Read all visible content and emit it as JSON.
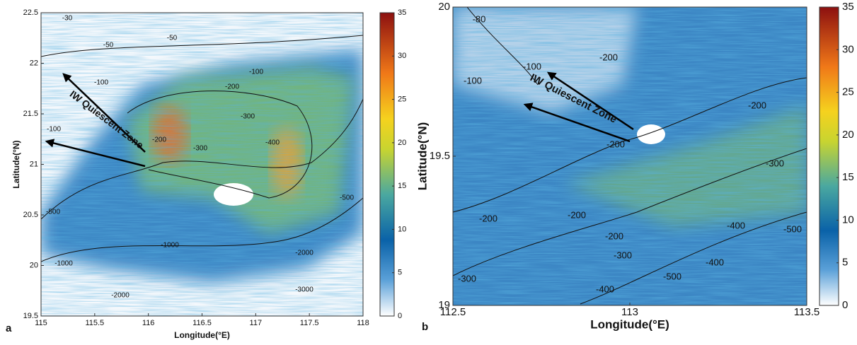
{
  "panels": [
    {
      "letter": "a",
      "xlabel": "Longitude(°E)",
      "ylabel": "Latitude(°N)",
      "xlim": [
        115,
        118
      ],
      "xticks": [
        115,
        115.5,
        116,
        116.5,
        117,
        117.5,
        118
      ],
      "ylim": [
        19.5,
        22.5
      ],
      "yticks": [
        19.5,
        20,
        20.5,
        21,
        21.5,
        22,
        22.5
      ],
      "colorbar": {
        "lim": [
          0,
          35
        ],
        "ticks": [
          0,
          5,
          10,
          15,
          20,
          25,
          30,
          35
        ]
      },
      "annotation": "IW Quiescent Zone",
      "contour_labels": [
        -30,
        -50,
        -50,
        -100,
        -100,
        -200,
        -300,
        -300,
        -400,
        -500,
        -500,
        -1000,
        -1000,
        -2000,
        -2000,
        -3000,
        -100,
        -200
      ]
    },
    {
      "letter": "b",
      "xlabel": "Longitude(°E)",
      "ylabel": "Latitude(°N)",
      "xlim": [
        112.5,
        113.5
      ],
      "xticks": [
        112.5,
        113,
        113.5
      ],
      "ylim": [
        19,
        20
      ],
      "yticks": [
        19,
        19.5,
        20
      ],
      "colorbar": {
        "lim": [
          0,
          35
        ],
        "ticks": [
          0,
          5,
          10,
          15,
          20,
          25,
          30,
          35
        ]
      },
      "annotation": "IW Quiescent Zone",
      "contour_labels": [
        -80,
        -100,
        -100,
        -200,
        -200,
        -200,
        -300,
        -200,
        -200,
        -200,
        -300,
        -400,
        -500,
        -400,
        -500,
        -400,
        -300
      ]
    }
  ]
}
